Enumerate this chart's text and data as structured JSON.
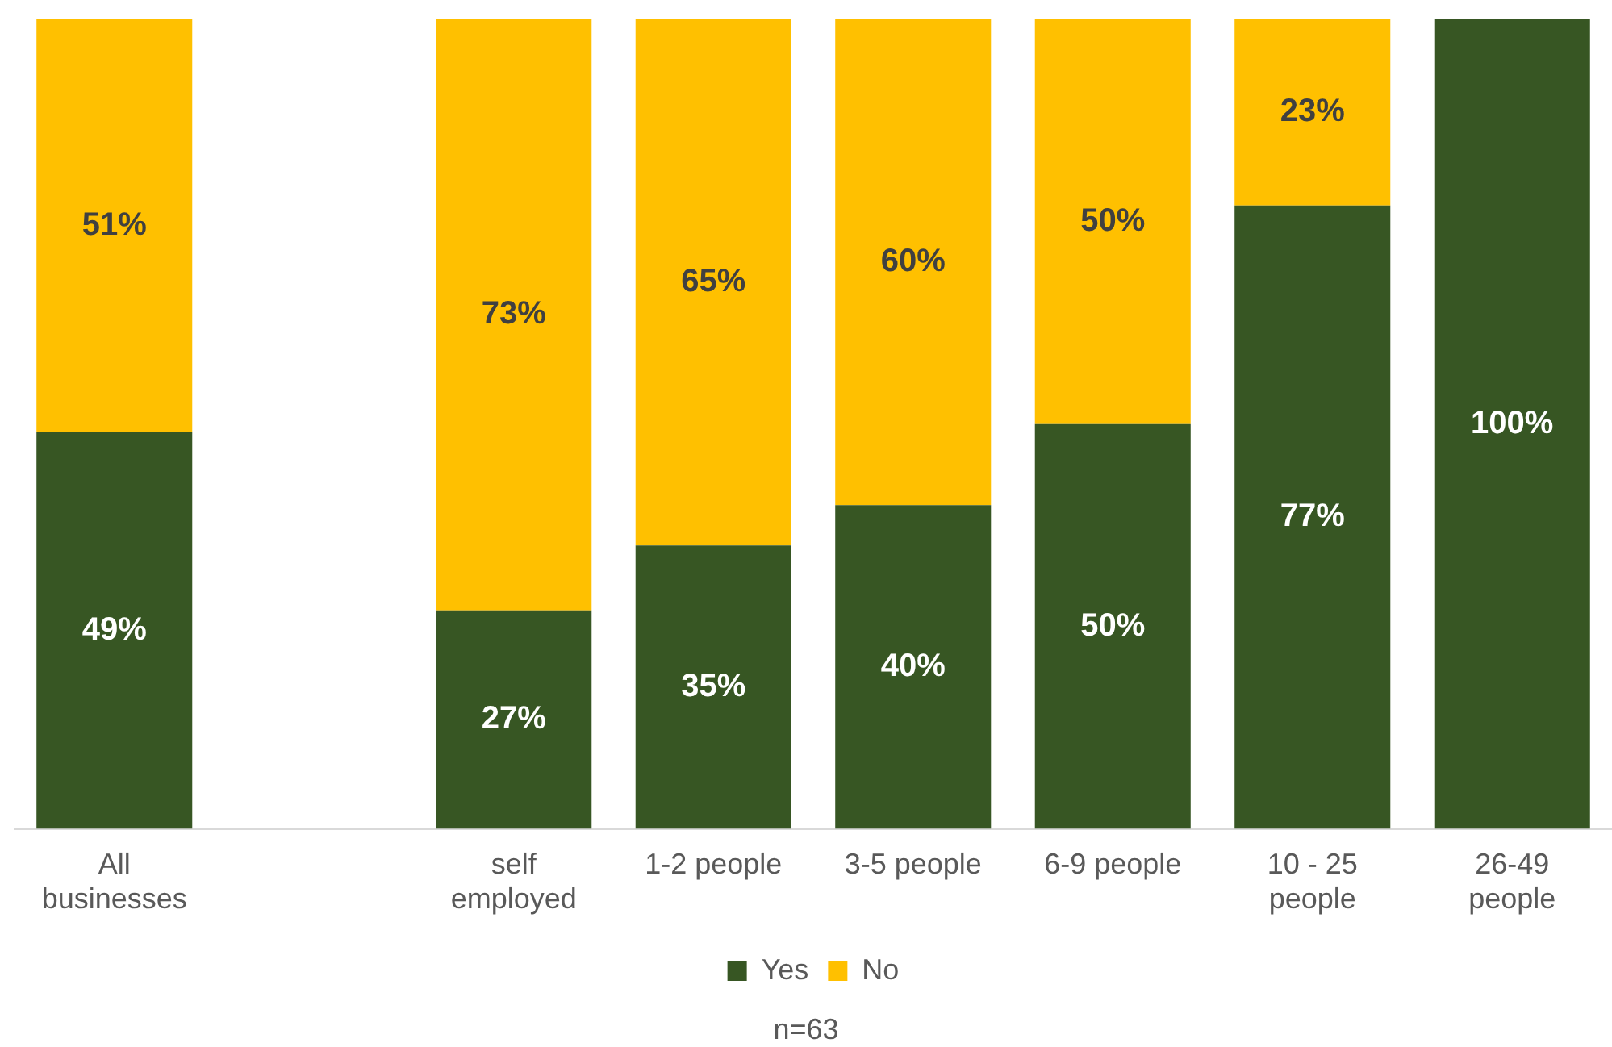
{
  "chart_data": {
    "type": "bar",
    "stacked": true,
    "categories": [
      "All businesses",
      null,
      "self employed",
      "1-2 people",
      "3-5 people",
      "6-9 people",
      "10 - 25 people",
      "26-49 people"
    ],
    "ylim": [
      0,
      100
    ],
    "series": [
      {
        "name": "Yes",
        "color": "#375623",
        "values": [
          49,
          null,
          27,
          35,
          40,
          50,
          77,
          100
        ],
        "value_labels": [
          "49%",
          null,
          "27%",
          "35%",
          "40%",
          "50%",
          "77%",
          "100%"
        ]
      },
      {
        "name": "No",
        "color": "#ffc000",
        "values": [
          51,
          null,
          73,
          65,
          60,
          50,
          23,
          null
        ],
        "value_labels": [
          "51%",
          null,
          "73%",
          "65%",
          "60%",
          "50%",
          "23%",
          null
        ]
      }
    ],
    "legend": "bottom",
    "grid": false,
    "annotations": [
      "n=63"
    ]
  }
}
